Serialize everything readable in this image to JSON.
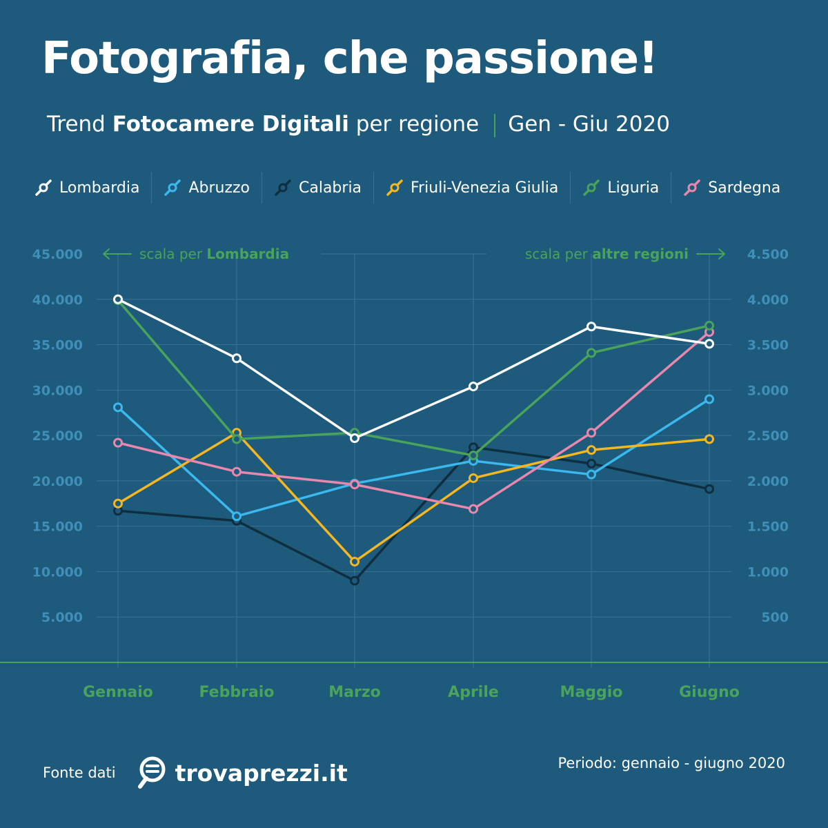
{
  "header": {
    "title": "Fotografia, che passione!",
    "subtitle_pre": "Trend ",
    "subtitle_bold": "Fotocamere Digitali",
    "subtitle_post": " per regione",
    "subtitle_period": "Gen - Giu 2020"
  },
  "legend": [
    {
      "label": "Lombardia",
      "color": "#ffffff"
    },
    {
      "label": "Abruzzo",
      "color": "#3bb8ee"
    },
    {
      "label": "Calabria",
      "color": "#0f2e3f"
    },
    {
      "label": "Friuli-Venezia Giulia",
      "color": "#f4b621"
    },
    {
      "label": "Liguria",
      "color": "#4aa35a"
    },
    {
      "label": "Sardegna",
      "color": "#ea87ad"
    }
  ],
  "scale_notes": {
    "left_pre": "scala per ",
    "left_bold": "Lombardia",
    "right_pre": "scala per ",
    "right_bold": "altre regioni"
  },
  "footer": {
    "source_label": "Fonte dati",
    "brand": "trovaprezzi.it",
    "period": "Periodo: gennaio - giugno 2020"
  },
  "colors": {
    "background": "#1d5a7c",
    "grid": "#3b7294",
    "axis_text": "#3f8fb8",
    "accent_green": "#4aa35a"
  },
  "chart_data": {
    "type": "line",
    "categories": [
      "Gennaio",
      "Febbraio",
      "Marzo",
      "Aprile",
      "Maggio",
      "Giugno"
    ],
    "y_left": {
      "ticks": [
        5000,
        10000,
        15000,
        20000,
        25000,
        30000,
        35000,
        40000,
        45000
      ],
      "tick_labels": [
        "5.000",
        "10.000",
        "15.000",
        "20.000",
        "25.000",
        "30.000",
        "35.000",
        "40.000",
        "45.000"
      ],
      "range": [
        0,
        45000
      ]
    },
    "y_right": {
      "ticks": [
        500,
        1000,
        1500,
        2000,
        2500,
        3000,
        3500,
        4000,
        4500
      ],
      "tick_labels": [
        "500",
        "1.000",
        "1.500",
        "2.000",
        "2.500",
        "3.000",
        "3.500",
        "4.000",
        "4.500"
      ],
      "range": [
        0,
        4500
      ]
    },
    "grid": true,
    "legend_position": "top",
    "series": [
      {
        "name": "Lombardia",
        "axis": "left",
        "color": "#ffffff",
        "values": [
          40000,
          33500,
          24700,
          30400,
          37000,
          35100
        ]
      },
      {
        "name": "Abruzzo",
        "axis": "right",
        "color": "#3bb8ee",
        "values": [
          2810,
          1610,
          1970,
          2220,
          2070,
          2900
        ]
      },
      {
        "name": "Calabria",
        "axis": "right",
        "color": "#0f2e3f",
        "values": [
          1670,
          1560,
          900,
          2370,
          2190,
          1910
        ]
      },
      {
        "name": "Friuli-Venezia Giulia",
        "axis": "right",
        "color": "#f4b621",
        "values": [
          1750,
          2530,
          1110,
          2030,
          2340,
          2460
        ]
      },
      {
        "name": "Liguria",
        "axis": "right",
        "color": "#4aa35a",
        "values": [
          3990,
          2460,
          2530,
          2280,
          3410,
          3710
        ]
      },
      {
        "name": "Sardegna",
        "axis": "right",
        "color": "#ea87ad",
        "values": [
          2420,
          2100,
          1960,
          1690,
          2530,
          3640
        ]
      }
    ]
  }
}
